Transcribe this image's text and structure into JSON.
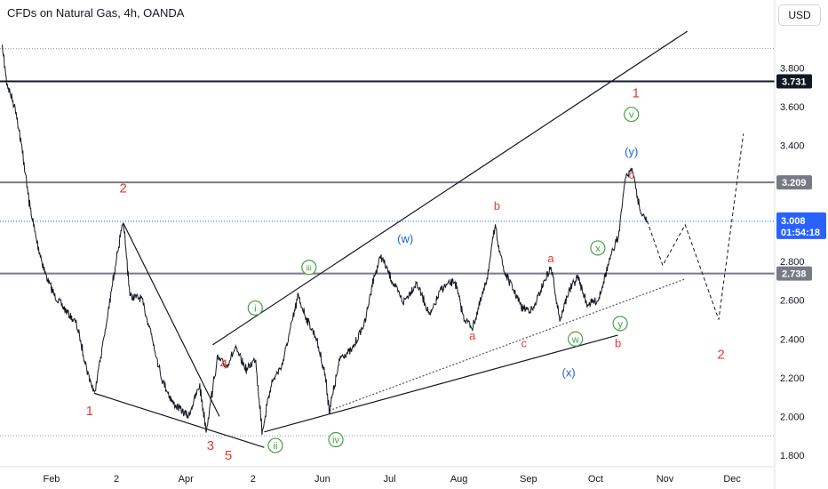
{
  "header": {
    "title": "CFDs on Natural Gas, 4h, OANDA",
    "currency": "USD"
  },
  "chart_data": {
    "type": "line",
    "title": "CFDs on Natural Gas, 4h, OANDA",
    "xlabel": "",
    "ylabel": "",
    "price_axis": {
      "ticks": [
        "1.800",
        "2.000",
        "2.200",
        "2.400",
        "2.600",
        "2.800",
        "3.000",
        "3.200",
        "3.400",
        "3.600",
        "3.800"
      ],
      "ylim": [
        1.74,
        4.05
      ]
    },
    "time_axis": {
      "labels": [
        "Feb",
        "2",
        "Apr",
        "2",
        "Jun",
        "Jul",
        "Aug",
        "Sep",
        "Oct",
        "Nov",
        "Dec"
      ]
    },
    "series": [
      {
        "values": [
          [
            "2024-01-10",
            3.9
          ],
          [
            "2024-01-12",
            3.72
          ],
          [
            "2024-01-16",
            3.58
          ],
          [
            "2024-01-19",
            3.36
          ],
          [
            "2024-01-22",
            3.1
          ],
          [
            "2024-01-25",
            2.92
          ],
          [
            "2024-01-29",
            2.74
          ],
          [
            "2024-02-02",
            2.63
          ],
          [
            "2024-02-07",
            2.55
          ],
          [
            "2024-02-12",
            2.48
          ],
          [
            "2024-02-17",
            2.23
          ],
          [
            "2024-02-20",
            2.12
          ],
          [
            "2024-02-26",
            2.52
          ],
          [
            "2024-03-01",
            2.83
          ],
          [
            "2024-03-04",
            3.0
          ],
          [
            "2024-03-07",
            2.62
          ],
          [
            "2024-03-12",
            2.61
          ],
          [
            "2024-03-16",
            2.45
          ],
          [
            "2024-03-21",
            2.2
          ],
          [
            "2024-03-26",
            2.07
          ],
          [
            "2024-04-02",
            2.0
          ],
          [
            "2024-04-07",
            2.16
          ],
          [
            "2024-04-10",
            1.93
          ],
          [
            "2024-04-15",
            2.3
          ],
          [
            "2024-04-19",
            2.26
          ],
          [
            "2024-04-23",
            2.35
          ],
          [
            "2024-04-28",
            2.24
          ],
          [
            "2024-05-02",
            2.3
          ],
          [
            "2024-05-05",
            1.92
          ],
          [
            "2024-05-09",
            2.17
          ],
          [
            "2024-05-14",
            2.27
          ],
          [
            "2024-05-18",
            2.47
          ],
          [
            "2024-05-21",
            2.62
          ],
          [
            "2024-05-25",
            2.5
          ],
          [
            "2024-05-29",
            2.41
          ],
          [
            "2024-06-02",
            2.22
          ],
          [
            "2024-06-04",
            2.03
          ],
          [
            "2024-06-09",
            2.31
          ],
          [
            "2024-06-14",
            2.34
          ],
          [
            "2024-06-20",
            2.49
          ],
          [
            "2024-06-23",
            2.68
          ],
          [
            "2024-06-27",
            2.83
          ],
          [
            "2024-07-02",
            2.7
          ],
          [
            "2024-07-07",
            2.59
          ],
          [
            "2024-07-13",
            2.69
          ],
          [
            "2024-07-19",
            2.52
          ],
          [
            "2024-07-24",
            2.66
          ],
          [
            "2024-07-30",
            2.7
          ],
          [
            "2024-08-03",
            2.51
          ],
          [
            "2024-08-07",
            2.46
          ],
          [
            "2024-08-13",
            2.69
          ],
          [
            "2024-08-17",
            2.98
          ],
          [
            "2024-08-21",
            2.75
          ],
          [
            "2024-08-25",
            2.66
          ],
          [
            "2024-08-29",
            2.56
          ],
          [
            "2024-09-03",
            2.55
          ],
          [
            "2024-09-08",
            2.7
          ],
          [
            "2024-09-11",
            2.77
          ],
          [
            "2024-09-15",
            2.5
          ],
          [
            "2024-09-19",
            2.65
          ],
          [
            "2024-09-23",
            2.72
          ],
          [
            "2024-09-27",
            2.58
          ],
          [
            "2024-10-02",
            2.6
          ],
          [
            "2024-10-07",
            2.8
          ],
          [
            "2024-10-11",
            2.93
          ],
          [
            "2024-10-14",
            3.22
          ],
          [
            "2024-10-17",
            3.29
          ],
          [
            "2024-10-21",
            3.05
          ],
          [
            "2024-10-24",
            3.01
          ]
        ]
      }
    ],
    "projection": [
      [
        "2024-10-24",
        3.01
      ],
      [
        "2024-10-31",
        2.78
      ],
      [
        "2024-11-10",
        2.99
      ],
      [
        "2024-11-25",
        2.5
      ],
      [
        "2024-12-06",
        3.46
      ]
    ],
    "horizontal_levels": [
      {
        "price": 3.731,
        "label": "3.731",
        "color": "#131722"
      },
      {
        "price": 3.209,
        "label": "3.209",
        "color": "#787b86"
      },
      {
        "price": 2.738,
        "label": "2.738",
        "color": "#787b86"
      }
    ],
    "current_price": {
      "price": 3.008,
      "label": "3.008",
      "countdown": "01:54:18",
      "color": "#2962ff"
    },
    "trendlines": [
      {
        "name": "wave-2-to-3",
        "from": [
          "2024-03-04",
          3.0
        ],
        "to": [
          "2024-04-16",
          2.0
        ]
      },
      {
        "name": "lower-wedge",
        "from": [
          "2024-02-20",
          2.12
        ],
        "to": [
          "2024-05-06",
          1.84
        ]
      },
      {
        "name": "upper-channel",
        "from": [
          "2024-04-13",
          2.37
        ],
        "to": [
          "2024-11-11",
          3.99
        ]
      },
      {
        "name": "support-line",
        "from": [
          "2024-05-06",
          1.92
        ],
        "to": [
          "2024-10-11",
          2.42
        ]
      },
      {
        "name": "dotted-support",
        "from": [
          "2024-06-04",
          2.03
        ],
        "to": [
          "2024-11-10",
          2.71
        ]
      }
    ],
    "wave_labels": [
      {
        "text": "1",
        "date": "2024-02-18",
        "price": 2.03,
        "color": "#e53935",
        "circled": false
      },
      {
        "text": "2",
        "date": "2024-03-04",
        "price": 3.18,
        "color": "#e53935",
        "circled": false
      },
      {
        "text": "3",
        "date": "2024-04-12",
        "price": 1.85,
        "color": "#e53935",
        "circled": false
      },
      {
        "text": "4",
        "date": "2024-04-18",
        "price": 2.27,
        "color": "#e53935",
        "circled": false
      },
      {
        "text": "5",
        "date": "2024-04-20",
        "price": 1.8,
        "color": "#e53935",
        "circled": false
      },
      {
        "text": "1",
        "date": "2024-10-19",
        "price": 3.67,
        "color": "#e53935",
        "circled": false
      },
      {
        "text": "2",
        "date": "2024-11-26",
        "price": 2.32,
        "color": "#e53935",
        "circled": false
      },
      {
        "text": "i",
        "date": "2024-05-02",
        "price": 2.56,
        "color": "#43a047",
        "circled": true
      },
      {
        "text": "ii",
        "date": "2024-05-11",
        "price": 1.85,
        "color": "#43a047",
        "circled": true
      },
      {
        "text": "iii",
        "date": "2024-05-26",
        "price": 2.77,
        "color": "#43a047",
        "circled": true
      },
      {
        "text": "iv",
        "date": "2024-06-07",
        "price": 1.88,
        "color": "#43a047",
        "circled": true
      },
      {
        "text": "v",
        "date": "2024-10-17",
        "price": 3.56,
        "color": "#43a047",
        "circled": true
      },
      {
        "text": "w",
        "date": "2024-09-22",
        "price": 2.4,
        "color": "#43a047",
        "circled": true
      },
      {
        "text": "x",
        "date": "2024-10-02",
        "price": 2.87,
        "color": "#43a047",
        "circled": true
      },
      {
        "text": "y",
        "date": "2024-10-12",
        "price": 2.48,
        "color": "#43a047",
        "circled": true
      },
      {
        "text": "(w)",
        "date": "2024-07-08",
        "price": 2.92,
        "color": "#1e63d6",
        "circled": false
      },
      {
        "text": "(x)",
        "date": "2024-09-19",
        "price": 2.23,
        "color": "#1e63d6",
        "circled": false
      },
      {
        "text": "(y)",
        "date": "2024-10-17",
        "price": 3.37,
        "color": "#1e63d6",
        "circled": false
      },
      {
        "text": "b",
        "date": "2024-08-18",
        "price": 3.09,
        "color": "#e53935",
        "circled": false
      },
      {
        "text": "a",
        "date": "2024-08-07",
        "price": 2.42,
        "color": "#e53935",
        "circled": false
      },
      {
        "text": "c",
        "date": "2024-08-30",
        "price": 2.38,
        "color": "#e53935",
        "circled": false
      },
      {
        "text": "a",
        "date": "2024-09-11",
        "price": 2.82,
        "color": "#e53935",
        "circled": false
      },
      {
        "text": "b",
        "date": "2024-10-11",
        "price": 2.38,
        "color": "#e53935",
        "circled": false
      },
      {
        "text": "c",
        "date": "2024-10-17",
        "price": 3.25,
        "color": "#e53935",
        "circled": false
      }
    ],
    "grid": false,
    "legend": "none"
  }
}
